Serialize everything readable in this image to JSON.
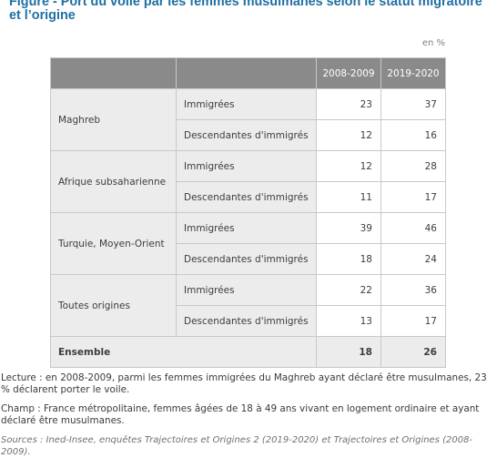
{
  "figure": {
    "title": "Figure - Port du voile par les femmes musulmanes selon le statut migratoire et l’origine",
    "unit": "en %"
  },
  "table": {
    "headers": [
      "",
      "",
      "2008-2009",
      "2019-2020"
    ],
    "groups": [
      {
        "name": "Maghreb",
        "rows": [
          {
            "category": "Immigrées",
            "v2008": "23",
            "v2019": "37"
          },
          {
            "category": "Descendantes d'immigrés",
            "v2008": "12",
            "v2019": "16"
          }
        ]
      },
      {
        "name": "Afrique subsaharienne",
        "rows": [
          {
            "category": "Immigrées",
            "v2008": "12",
            "v2019": "28"
          },
          {
            "category": "Descendantes d'immigrés",
            "v2008": "11",
            "v2019": "17"
          }
        ]
      },
      {
        "name": "Turquie, Moyen-Orient",
        "rows": [
          {
            "category": "Immigrées",
            "v2008": "39",
            "v2019": "46"
          },
          {
            "category": "Descendantes d'immigrés",
            "v2008": "18",
            "v2019": "24"
          }
        ]
      },
      {
        "name": "Toutes origines",
        "rows": [
          {
            "category": "Immigrées",
            "v2008": "22",
            "v2019": "36"
          },
          {
            "category": "Descendantes d'immigrés",
            "v2008": "13",
            "v2019": "17"
          }
        ]
      }
    ],
    "total": {
      "label": "Ensemble",
      "v2008": "18",
      "v2019": "26"
    }
  },
  "notes": {
    "lecture": "Lecture : en 2008-2009, parmi les femmes immigrées du Maghreb ayant déclaré être musulmanes, 23 % déclarent porter le voile.",
    "champ": "Champ : France métropolitaine, femmes âgées de 18 à 49 ans vivant en logement ordinaire et ayant déclaré être musulmanes.",
    "sources": "Sources : Ined-Insee, enquêtes Trajectoires et Origines 2 (2019-2020) et Trajectoires et Origines (2008-2009)."
  },
  "colors": {
    "title": "#1f6fa3",
    "header_bg": "#8a8a8a",
    "label_bg": "#ececec",
    "border": "#c8c8c8"
  }
}
